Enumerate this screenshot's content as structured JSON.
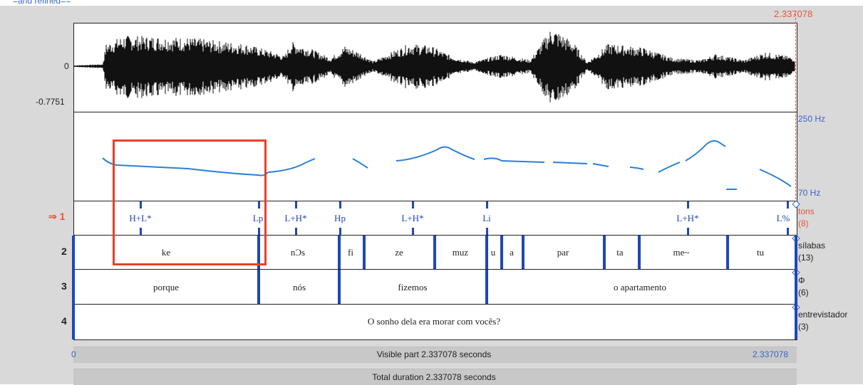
{
  "header": {
    "top_link_fragment": "=and  refined==",
    "cursor_time": "2.337078"
  },
  "waveform": {
    "y_zero_label": "0",
    "y_min_label": "-0.7751"
  },
  "pitch": {
    "max_label": "250 Hz",
    "min_label": "70 Hz"
  },
  "tiers": [
    {
      "number": "1",
      "name": "tons",
      "count": "(8)",
      "selected": true,
      "labels": [
        {
          "text": "H+L*"
        },
        {
          "text": "Lp"
        },
        {
          "text": "L+H*"
        },
        {
          "text": "Hp"
        },
        {
          "text": "L+H*"
        },
        {
          "text": "Li"
        },
        {
          "text": "L+H*"
        },
        {
          "text": "L%"
        }
      ]
    },
    {
      "number": "2",
      "name": "sílabas",
      "count": "(13)",
      "intervals": [
        "ke",
        "nƆs",
        "fi",
        "ze",
        "muz",
        "u",
        "a",
        "par",
        "ta",
        "me~",
        "tu"
      ]
    },
    {
      "number": "3",
      "name": "Φ",
      "count": "(6)",
      "intervals": [
        "porque",
        "nós",
        "fizemos",
        "o apartamento"
      ]
    },
    {
      "number": "4",
      "name": "entrevistador",
      "count": "(3)",
      "intervals": [
        "O sonho dela era morar com vocês?"
      ]
    }
  ],
  "footer": {
    "visible_start": "0",
    "visible_label": "Visible part 2.337078 seconds",
    "visible_end": "2.337078",
    "total_label": "Total duration 2.337078 seconds"
  },
  "colors": {
    "tier_blue": "#2046b8",
    "pitch_blue": "#2a7fd6",
    "highlight_red": "#e8402a",
    "label_red": "#e6553a"
  }
}
